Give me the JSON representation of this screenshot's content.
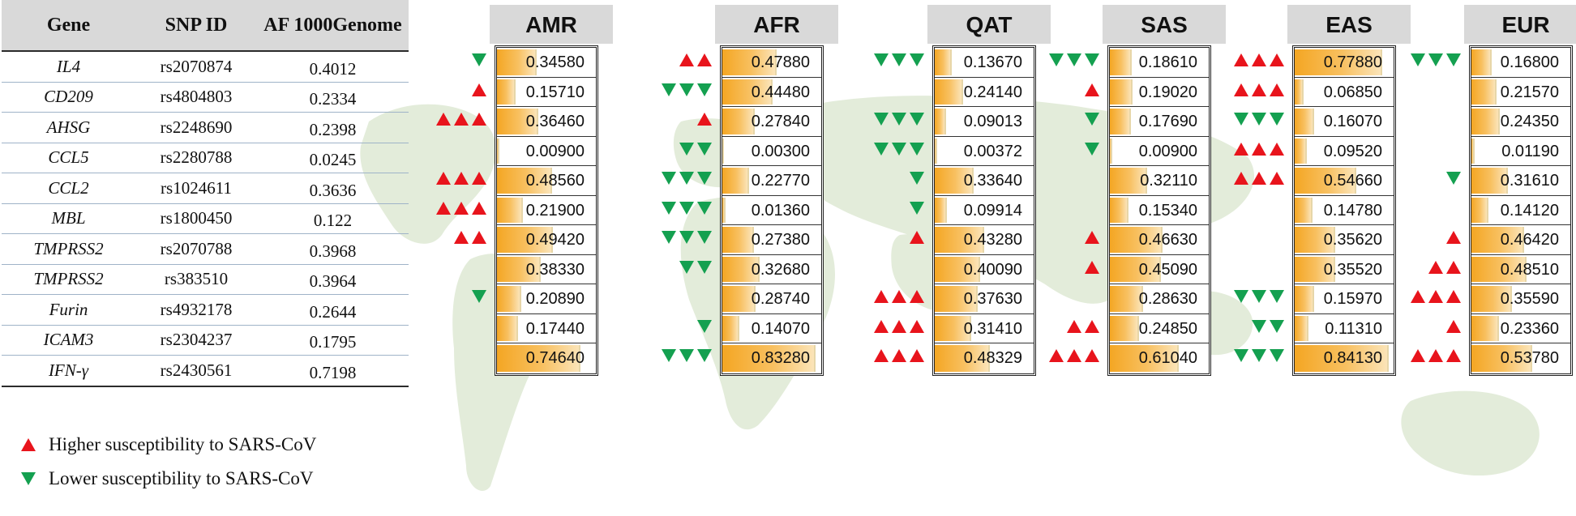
{
  "table": {
    "headers": {
      "gene": "Gene",
      "snp": "SNP ID",
      "af": "AF 1000Genome"
    },
    "rows": [
      {
        "gene": "IL4",
        "snp": "rs2070874",
        "af": "0.4012"
      },
      {
        "gene": "CD209",
        "snp": "rs4804803",
        "af": "0.2334"
      },
      {
        "gene": "AHSG",
        "snp": "rs2248690",
        "af": "0.2398"
      },
      {
        "gene": "CCL5",
        "snp": "rs2280788",
        "af": "0.0245"
      },
      {
        "gene": "CCL2",
        "snp": "rs1024611",
        "af": "0.3636"
      },
      {
        "gene": "MBL",
        "snp": "rs1800450",
        "af": "0.122"
      },
      {
        "gene": "TMPRSS2",
        "snp": "rs2070788",
        "af": "0.3968"
      },
      {
        "gene": "TMPRSS2",
        "snp": "rs383510",
        "af": "0.3964"
      },
      {
        "gene": "Furin",
        "snp": "rs4932178",
        "af": "0.2644"
      },
      {
        "gene": "ICAM3",
        "snp": "rs2304237",
        "af": "0.1795"
      },
      {
        "gene": "IFN-γ",
        "snp": "rs2430561",
        "af": "0.7198"
      }
    ]
  },
  "populations": [
    {
      "name": "AMR",
      "values": [
        "0.34580",
        "0.15710",
        "0.36460",
        "0.00900",
        "0.48560",
        "0.21900",
        "0.49420",
        "0.38330",
        "0.20890",
        "0.17440",
        "0.74640"
      ],
      "marks": [
        "1v",
        "1^",
        "3^",
        "",
        "3^",
        "3^",
        "2^",
        "",
        "1v",
        "",
        ""
      ]
    },
    {
      "name": "AFR",
      "values": [
        "0.47880",
        "0.44480",
        "0.27840",
        "0.00300",
        "0.22770",
        "0.01360",
        "0.27380",
        "0.32680",
        "0.28740",
        "0.14070",
        "0.83280"
      ],
      "marks": [
        "2^",
        "3v",
        "1^",
        "2v",
        "3v",
        "3v",
        "3v",
        "2v",
        "",
        "1v",
        "3v"
      ]
    },
    {
      "name": "QAT",
      "values": [
        "0.13670",
        "0.24140",
        "0.09013",
        "0.00372",
        "0.33640",
        "0.09914",
        "0.43280",
        "0.40090",
        "0.37630",
        "0.31410",
        "0.48329"
      ],
      "marks": [
        "3v",
        "",
        "3v",
        "3v",
        "1v",
        "1v",
        "1^",
        "",
        "3^",
        "3^",
        "3^"
      ]
    },
    {
      "name": "SAS",
      "values": [
        "0.18610",
        "0.19020",
        "0.17690",
        "0.00900",
        "0.32110",
        "0.15340",
        "0.46630",
        "0.45090",
        "0.28630",
        "0.24850",
        "0.61040"
      ],
      "marks": [
        "3v",
        "1^",
        "1v",
        "1v",
        "",
        "",
        "1^",
        "1^",
        "",
        "2^",
        "3^"
      ]
    },
    {
      "name": "EAS",
      "values": [
        "0.77880",
        "0.06850",
        "0.16070",
        "0.09520",
        "0.54660",
        "0.14780",
        "0.35620",
        "0.35520",
        "0.15970",
        "0.11310",
        "0.84130"
      ],
      "marks": [
        "3^",
        "3^",
        "3v",
        "3^",
        "3^",
        "",
        "",
        "",
        "3v",
        "2v",
        "3v"
      ]
    },
    {
      "name": "EUR",
      "values": [
        "0.16800",
        "0.21570",
        "0.24350",
        "0.01190",
        "0.31610",
        "0.14120",
        "0.46420",
        "0.48510",
        "0.35590",
        "0.23360",
        "0.53780"
      ],
      "marks": [
        "3v",
        "",
        "",
        "",
        "1v",
        "",
        "1^",
        "2^",
        "3^",
        "1^",
        "3^"
      ]
    }
  ],
  "legend": {
    "higher": "Higher susceptibility to SARS-CoV",
    "lower": "Lower susceptibility to SARS-CoV"
  },
  "colors": {
    "up": "#e8141c",
    "down": "#14a050",
    "bar": "#f4a623",
    "map": "#dfe9d5"
  }
}
